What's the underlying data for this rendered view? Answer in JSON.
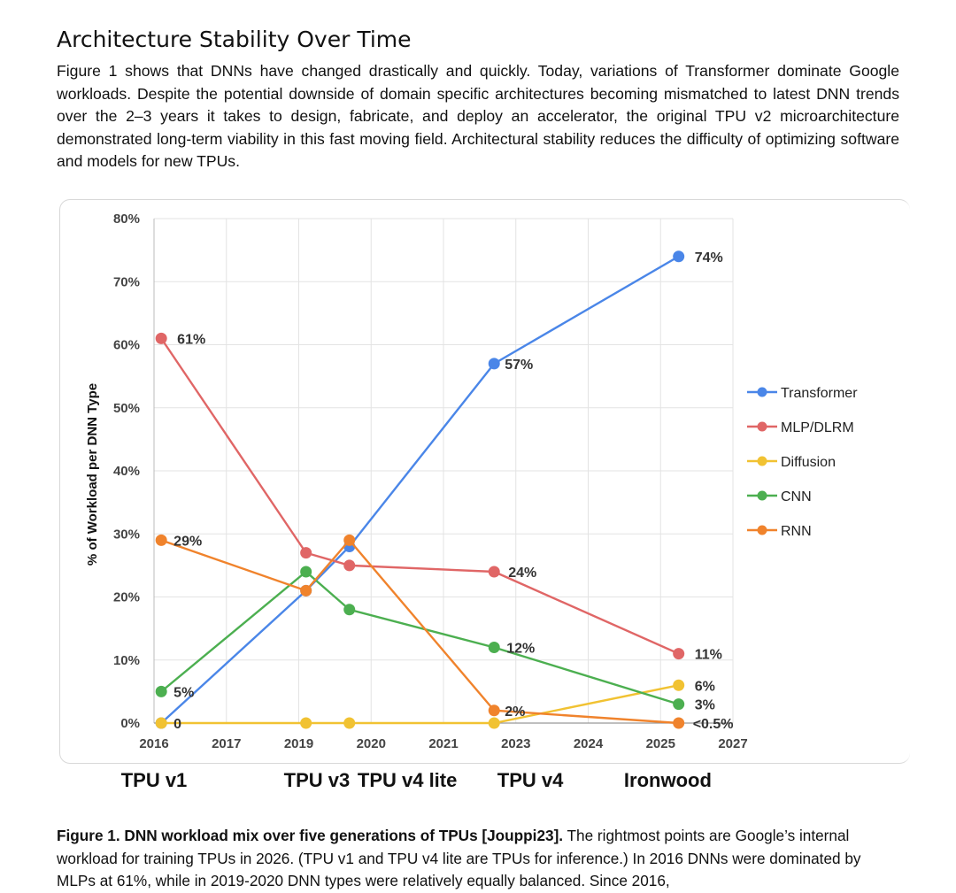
{
  "heading": "Architecture Stability Over Time",
  "intro": "Figure 1 shows that DNNs have changed drastically and quickly.  Today, variations of Transformer dominate Google workloads. Despite the potential downside of domain specific architectures becoming mismatched to latest DNN trends over the 2–3 years it takes to design, fabricate, and deploy an accelerator, the original TPU v2 microarchitecture demonstrated long-term viability in this fast moving field. Architectural stability reduces the difficulty of optimizing software and models for new TPUs.",
  "caption": {
    "bold": "Figure 1.  DNN workload mix over five generations of TPUs [Jouppi23].",
    "text": " The rightmost points are Google’s internal workload for training TPUs in 2026. (TPU v1 and TPU v4 lite are TPUs for inference.)  In 2016 DNNs were dominated by MLPs at 61%, while in 2019-2020 DNN types were relatively equally balanced. Since 2016,"
  },
  "chart_data": {
    "type": "line",
    "title": "",
    "xlabel": "",
    "ylabel": "% of Workload per DNN Type",
    "x_ticks": [
      "2016",
      "2017",
      "2019",
      "2020",
      "2021",
      "2023",
      "2024",
      "2025",
      "2027"
    ],
    "y_ticks": [
      "0%",
      "10%",
      "20%",
      "30%",
      "40%",
      "50%",
      "60%",
      "70%",
      "80%"
    ],
    "ylim": [
      0,
      80
    ],
    "grid": true,
    "legend_position": "right",
    "generations": [
      {
        "label": "TPU v1",
        "at": 0
      },
      {
        "label": "TPU v3",
        "at": 2.25
      },
      {
        "label": "TPU v4 lite",
        "at": 3.5
      },
      {
        "label": "TPU v4",
        "at": 5.2
      },
      {
        "label": "Ironwood",
        "at": 7.1
      }
    ],
    "x_positions": [
      0.1,
      2.1,
      2.7,
      4.7,
      7.25
    ],
    "series": [
      {
        "name": "Transformer",
        "color": "#4a86e8",
        "values": [
          0,
          21,
          28,
          57,
          74
        ],
        "labels": [
          null,
          null,
          null,
          "57%",
          "74%"
        ]
      },
      {
        "name": "MLP/DLRM",
        "color": "#e06666",
        "values": [
          61,
          27,
          25,
          24,
          11
        ],
        "labels": [
          "61%",
          null,
          null,
          "24%",
          "11%"
        ]
      },
      {
        "name": "Diffusion",
        "color": "#f1c232",
        "values": [
          0,
          0,
          0,
          0,
          6
        ],
        "labels": [
          "0",
          null,
          null,
          null,
          "6%"
        ]
      },
      {
        "name": "CNN",
        "color": "#4caf50",
        "values": [
          5,
          24,
          18,
          12,
          3
        ],
        "labels": [
          "5%",
          null,
          null,
          "12%",
          "3%"
        ]
      },
      {
        "name": "RNN",
        "color": "#f0832c",
        "values": [
          29,
          21,
          29,
          2,
          0
        ],
        "labels": [
          "29%",
          null,
          null,
          "2%",
          "<0.5%"
        ]
      }
    ]
  }
}
